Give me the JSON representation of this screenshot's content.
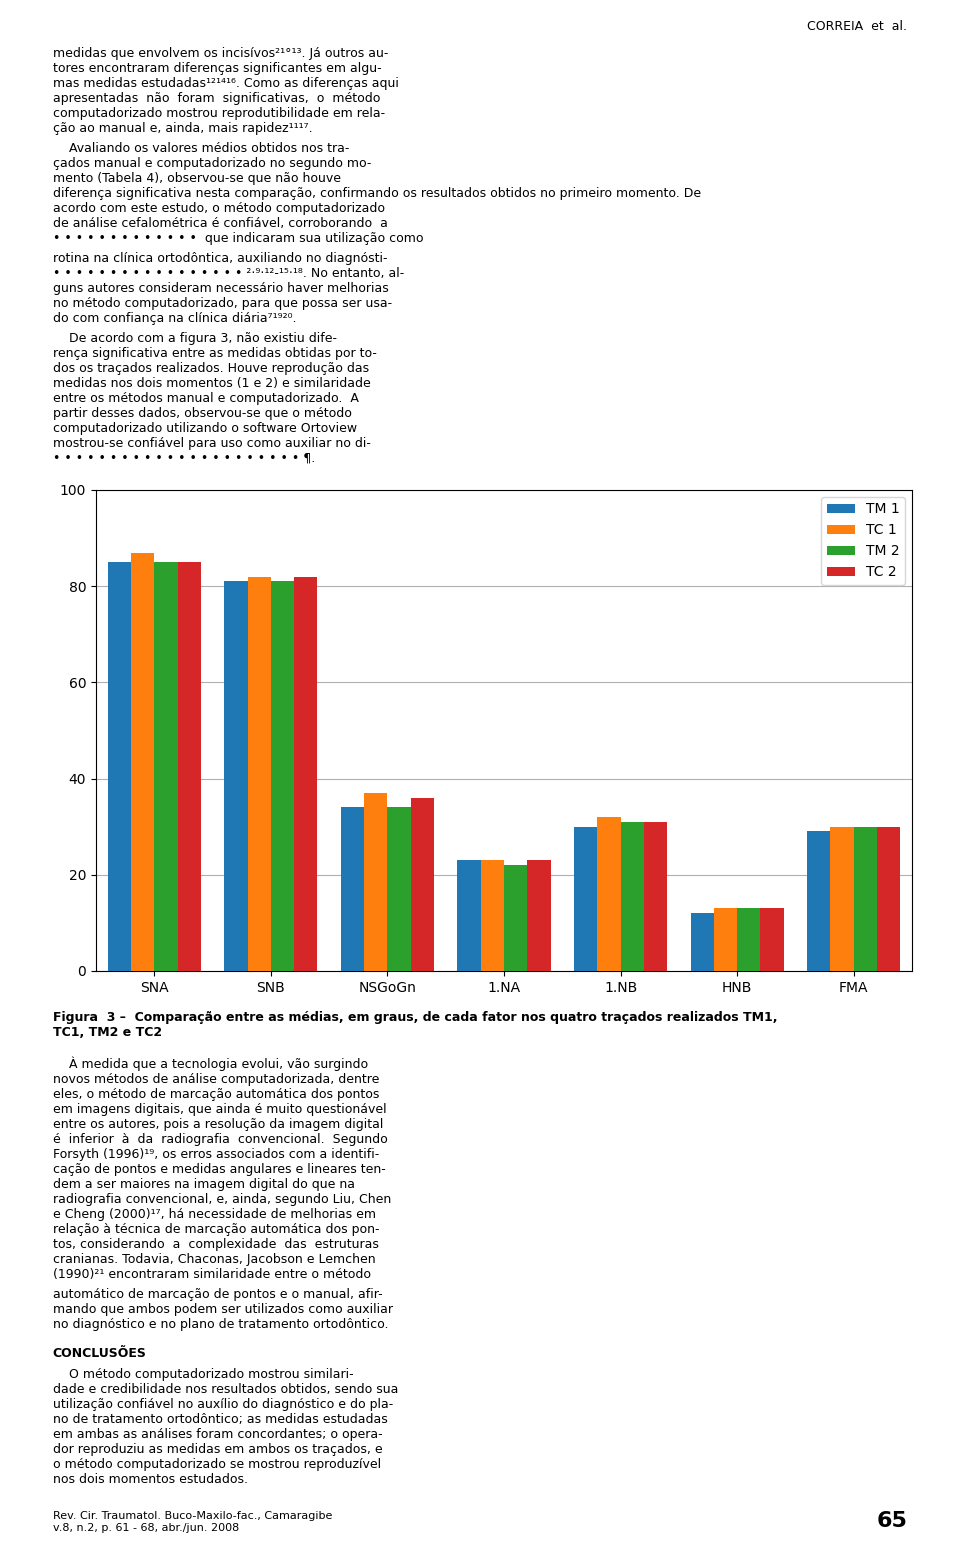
{
  "chart_data": {
    "type": "bar",
    "title": "Figura  3 –  Comparação entre as médias, em graus, de cada fator nos quatro traçados realizados TM1,\nTC1, TM2 e TC2",
    "categories": [
      "SNA",
      "SNB",
      "NSGoGn",
      "1.NA",
      "1.NB",
      "HNB",
      "FMA"
    ],
    "series": [
      {
        "name": "TM 1",
        "values": [
          85,
          81,
          34,
          23,
          30,
          12,
          29
        ]
      },
      {
        "name": "TC 1",
        "values": [
          87,
          82,
          37,
          23,
          32,
          13,
          30
        ]
      },
      {
        "name": "TM 2",
        "values": [
          85,
          81,
          34,
          22,
          31,
          13,
          30
        ]
      },
      {
        "name": "TC 2",
        "values": [
          85,
          82,
          36,
          23,
          31,
          13,
          30
        ]
      }
    ],
    "ylim": [
      0,
      100
    ],
    "yticks": [
      0,
      20,
      40,
      60,
      80,
      100
    ],
    "grid": true,
    "legend": "upper right",
    "annotations": [
      "CORREIA  et  al.",
      "medidas que envolvem os incisívos²¹°¹³. Já outros au-\ntores encontraram diferenças significantes em algu-\nmas medidas estudadas¹²¹⁴¹⁶. Como as diferenças aqui\napresentadas  não  foram  significativas,  o  método\ncomputadorizado mostrou reprodutibilidade em rela-\nção ao manual e, ainda, mais rapidez¹¹¹⁷.",
      "    Avaliando os valores médios obtidos nos tra-\nçados manual e computadorizado no segundo mo-\nmento (Tabela 4), observou-se que não houve\ndiferença significativa nesta comparação, confirmando os resultados obtidos no primeiro momento. De\nacordo com este estudo, o método computadorizado\nde análise cefalométrica é confiável, corroborando  a\n• • • • • • • • • • • • •  que indicaram sua utilização como",
      "rotina na clínica ortodôntica, auxiliando no diagnósti-\n• • • • • • • • • • • • • • • • • ²⋅⁹⋅¹²-¹⁵⋅¹⁸. No entanto, al-\nguns autores consideram necessário haver melhorias\nno método computadorizado, para que possa ser usa-\ndo com confiança na clínica diária⁷¹⁹²⁰.",
      "    De acordo com a figura 3, não existiu dife-\nrença significativa entre as medidas obtidas por to-\ndos os traçados realizados. Houve reprodução das\nmedidas nos dois momentos (1 e 2) e similaridade\nentre os métodos manual e computadorizado.  A\npartir desses dados, observou-se que o método\ncomputadorizado utilizando o software Ortoview\nmostrou-se confiável para uso como auxiliar no di-\n• • • • • • • • • • • • • • • • • • • • • • ¶.",
      "    À medida que a tecnologia evolui, vão surgindo\nnovos métodos de análise computadorizada, dentre\neles, o método de marcação automática dos pontos\nem imagens digitais, que ainda é muito questionável\nentre os autores, pois a resolução da imagem digital\né  inferior  à  da  radiografia  convencional.  Segundo\nForsyth (1996)¹⁹, os erros associados com a identifi-\ncação de pontos e medidas angulares e lineares ten-\ndem a ser maiores na imagem digital do que na\nradiografia convencional, e, ainda, segundo Liu, Chen\ne Cheng (2000)¹⁷, há necessidade de melhorias em\nrelação à técnica de marcação automática dos pon-\ntos, considerando  a  complexidade  das  estruturas\ncranianas. Todavia, Chaconas, Jacobson e Lemchen\n(1990)²¹ encontraram similaridade entre o método",
      "automático de marcação de pontos e o manual, afir-\nmando que ambos podem ser utilizados como auxiliar\nno diagnóstico e no plano de tratamento ortodôntico.",
      "CONCLUSÕES",
      "    O método computadorizado mostrou similari-\ndade e credibilidade nos resultados obtidos, sendo sua\nutilização confiável no auxílio do diagnóstico e do pla-\nno de tratamento ortodôntico; as medidas estudadas\nem ambas as análises foram concordantes; o opera-\ndor reproduziu as medidas em ambos os traçados, e\no método computadorizado se mostrou reproduzível\nnos dois momentos estudados.",
      "Rev. Cir. Traumatol. Buco-Maxilo-fac., Camaragibe\nv.8, n.2, p. 61 - 68, abr./jun. 2008",
      "65"
    ]
  }
}
